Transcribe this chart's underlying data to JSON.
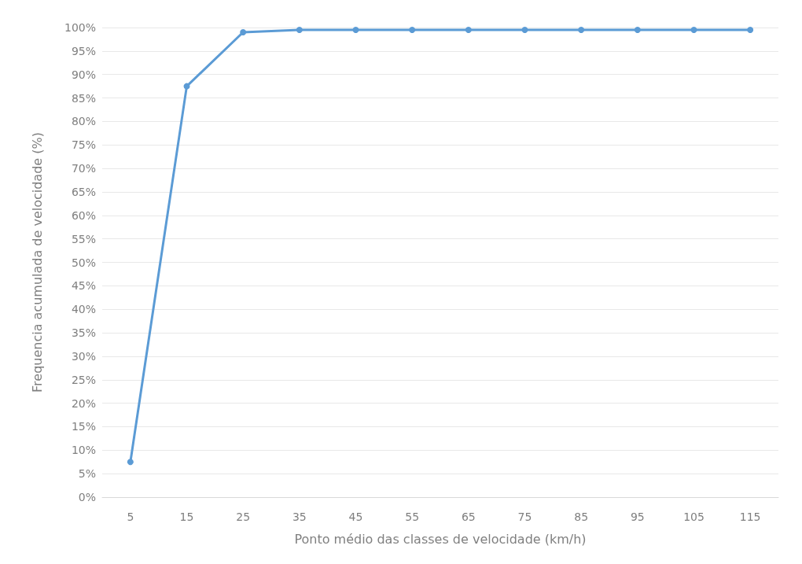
{
  "chart_data": {
    "type": "line",
    "xlabel": "Ponto médio das classes de velocidade (km/h)",
    "ylabel": "Frequencia acumulada de velocidade (%)",
    "categories": [
      "5",
      "15",
      "25",
      "35",
      "45",
      "55",
      "65",
      "75",
      "85",
      "95",
      "105",
      "115"
    ],
    "series": [
      {
        "color": "#5b9bd5",
        "values": [
          7.5,
          87.5,
          99,
          99.5,
          99.5,
          99.5,
          99.5,
          99.5,
          99.5,
          99.5,
          99.5,
          99.5
        ]
      }
    ],
    "ylim": [
      0,
      100
    ],
    "yticks": [
      {
        "value": 0,
        "label": "0%"
      },
      {
        "value": 5,
        "label": "5%"
      },
      {
        "value": 10,
        "label": "10%"
      },
      {
        "value": 15,
        "label": "15%"
      },
      {
        "value": 20,
        "label": "20%"
      },
      {
        "value": 25,
        "label": "25%"
      },
      {
        "value": 30,
        "label": "30%"
      },
      {
        "value": 35,
        "label": "35%"
      },
      {
        "value": 40,
        "label": "40%"
      },
      {
        "value": 45,
        "label": "45%"
      },
      {
        "value": 50,
        "label": "50%"
      },
      {
        "value": 55,
        "label": "55%"
      },
      {
        "value": 60,
        "label": "60%"
      },
      {
        "value": 65,
        "label": "65%"
      },
      {
        "value": 70,
        "label": "70%"
      },
      {
        "value": 75,
        "label": "75%"
      },
      {
        "value": 80,
        "label": "80%"
      },
      {
        "value": 85,
        "label": "85%"
      },
      {
        "value": 90,
        "label": "90%"
      },
      {
        "value": 95,
        "label": "95%"
      },
      {
        "value": 100,
        "label": "100%"
      }
    ],
    "grid": "y",
    "marker": "circle",
    "line_style": "solid"
  }
}
